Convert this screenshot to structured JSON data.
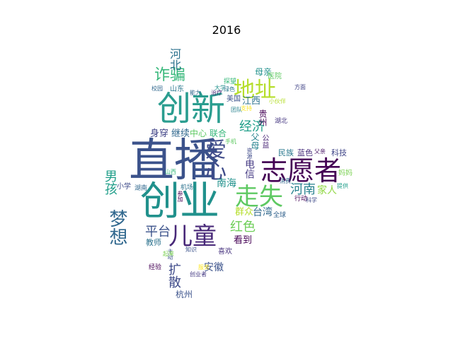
{
  "figure": {
    "title": "2016"
  },
  "wordcloud": {
    "words": [
      {
        "text": "直播",
        "color": "#3b528b"
      },
      {
        "text": "创业",
        "color": "#21918c"
      },
      {
        "text": "创新",
        "color": "#2a9d8f"
      },
      {
        "text": "志愿者",
        "color": "#440154"
      },
      {
        "text": "儿童",
        "color": "#482878"
      },
      {
        "text": "走失",
        "color": "#5ec962"
      },
      {
        "text": "地址",
        "color": "#b5de2b"
      },
      {
        "text": "爱心",
        "color": "#3e4a89"
      },
      {
        "text": "梦想",
        "color": "#31688e"
      },
      {
        "text": "诈骗",
        "color": "#35b779"
      },
      {
        "text": "河南",
        "color": "#26828e"
      },
      {
        "text": "男孩",
        "color": "#1f9e89"
      },
      {
        "text": "平台",
        "color": "#3b528b"
      },
      {
        "text": "红色",
        "color": "#6ece58"
      },
      {
        "text": "经济",
        "color": "#1f9e89"
      },
      {
        "text": "扩散",
        "color": "#3e4a89"
      },
      {
        "text": "南海",
        "color": "#21918c"
      },
      {
        "text": "家人",
        "color": "#90d743"
      },
      {
        "text": "台湾",
        "color": "#31688e"
      },
      {
        "text": "江西",
        "color": "#2c728e"
      },
      {
        "text": "电信",
        "color": "#443983"
      },
      {
        "text": "安徽",
        "color": "#3b528b"
      },
      {
        "text": "看到",
        "color": "#440154"
      },
      {
        "text": "河北",
        "color": "#2c728e"
      },
      {
        "text": "身穿",
        "color": "#414487"
      },
      {
        "text": "继续",
        "color": "#31688e"
      },
      {
        "text": "群众",
        "color": "#b5de2b"
      },
      {
        "text": "科技",
        "color": "#404688"
      },
      {
        "text": "民族",
        "color": "#2a788e"
      },
      {
        "text": "蓝色",
        "color": "#472d7b"
      },
      {
        "text": "杭州",
        "color": "#3b528b"
      },
      {
        "text": "中心",
        "color": "#5ec962"
      },
      {
        "text": "联合",
        "color": "#35b779"
      },
      {
        "text": "贵州",
        "color": "#440154"
      },
      {
        "text": "父母",
        "color": "#26828e"
      },
      {
        "text": "教师",
        "color": "#2c728e"
      },
      {
        "text": "公益",
        "color": "#482475"
      },
      {
        "text": "母亲",
        "color": "#21918c"
      },
      {
        "text": "美国",
        "color": "#3b528b"
      },
      {
        "text": "医院",
        "color": "#5ec962"
      },
      {
        "text": "喜欢",
        "color": "#46327e"
      },
      {
        "text": "山东",
        "color": "#2a788e"
      },
      {
        "text": "湖北",
        "color": "#453781"
      },
      {
        "text": "小学",
        "color": "#3e4a89"
      },
      {
        "text": "湖南",
        "color": "#31688e"
      },
      {
        "text": "全球",
        "color": "#33638d"
      },
      {
        "text": "行动",
        "color": "#440154"
      },
      {
        "text": "妈妈",
        "color": "#7ad151"
      },
      {
        "text": "机场",
        "color": "#2c728e"
      },
      {
        "text": "山西",
        "color": "#35b779"
      },
      {
        "text": "主动",
        "color": "#3b528b"
      },
      {
        "text": "资源",
        "color": "#3e4a89"
      },
      {
        "text": "父亲",
        "color": "#471365"
      },
      {
        "text": "消费",
        "color": "#31688e"
      },
      {
        "text": "起来",
        "color": "#7ad151"
      },
      {
        "text": "大学",
        "color": "#21918c"
      },
      {
        "text": "经验",
        "color": "#440154"
      },
      {
        "text": "手机",
        "color": "#5ec962"
      },
      {
        "text": "服务",
        "color": "#fde725"
      },
      {
        "text": "方面",
        "color": "#414487"
      },
      {
        "text": "探望",
        "color": "#35b779"
      },
      {
        "text": "能力",
        "color": "#31688e"
      },
      {
        "text": "绿色",
        "color": "#2a788e"
      },
      {
        "text": "参加",
        "color": "#440154"
      },
      {
        "text": "治疗",
        "color": "#482878"
      },
      {
        "text": "科学",
        "color": "#3e4a89"
      },
      {
        "text": "提供",
        "color": "#1f9e89"
      },
      {
        "text": "支持",
        "color": "#fde725"
      },
      {
        "text": "小伙伴",
        "color": "#b5de2b"
      },
      {
        "text": "校园",
        "color": "#31688e"
      },
      {
        "text": "知识",
        "color": "#3b528b"
      },
      {
        "text": "创业者",
        "color": "#443983"
      },
      {
        "text": "团队",
        "color": "#26828e"
      }
    ]
  }
}
